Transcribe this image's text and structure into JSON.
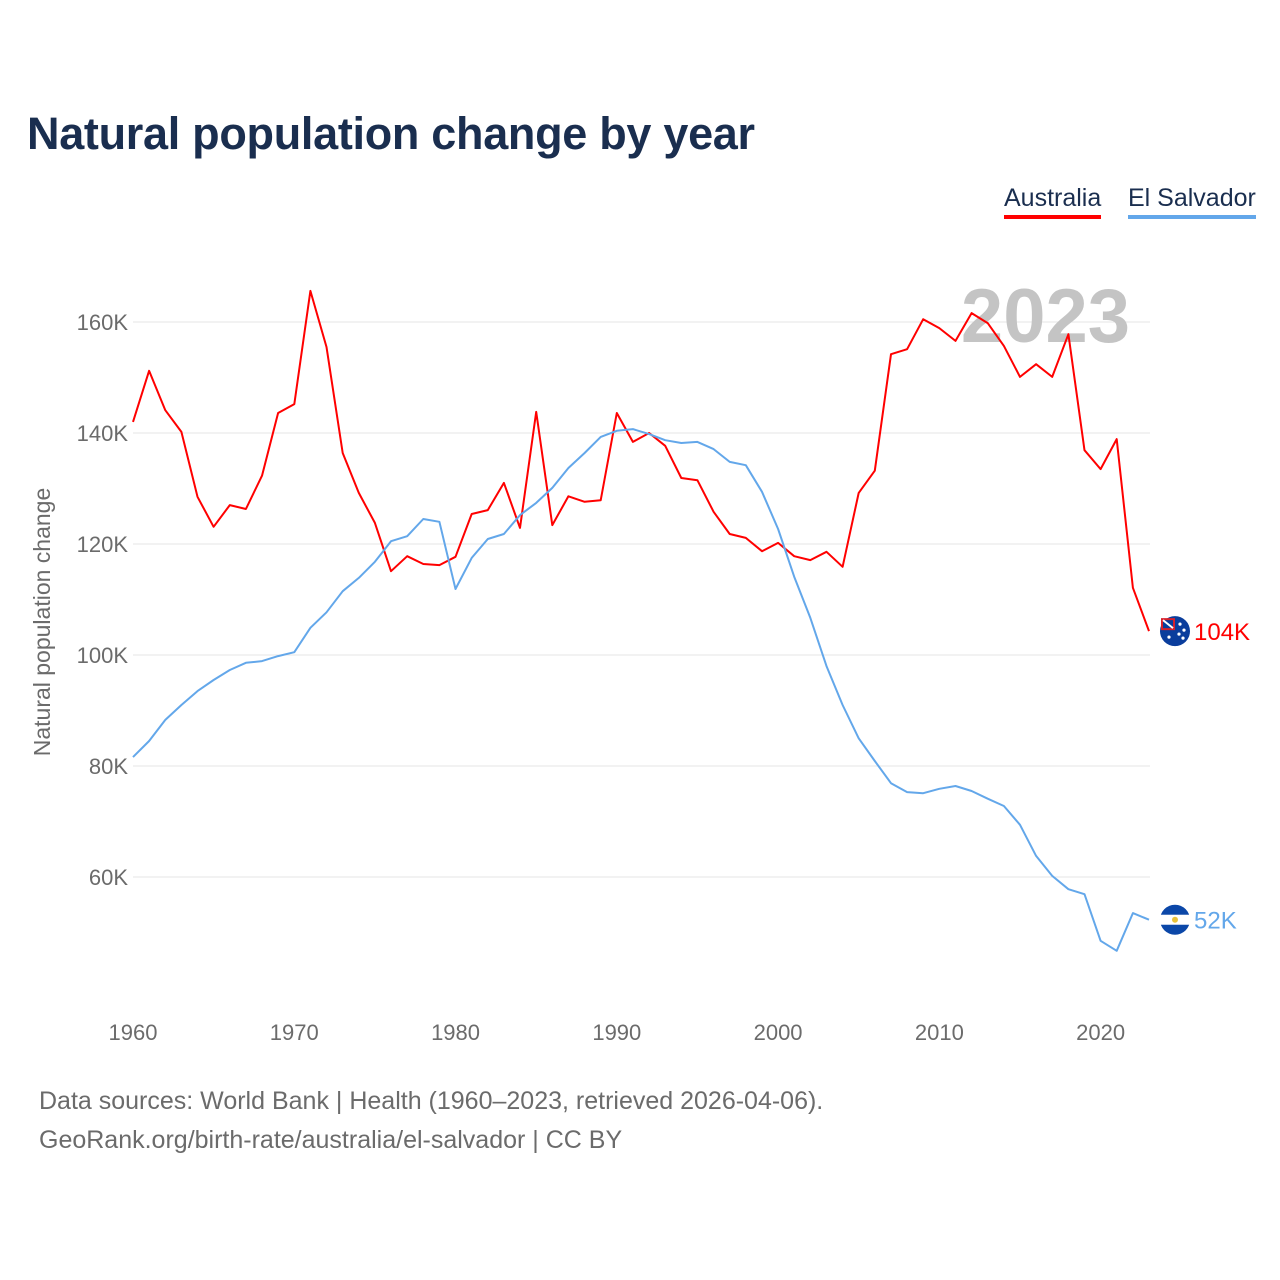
{
  "title": "Natural population change by year",
  "legend": [
    {
      "label": "Australia",
      "color": "#ff0000"
    },
    {
      "label": "El Salvador",
      "color": "#63a7ea"
    }
  ],
  "year_watermark": "2023",
  "footer": {
    "line1": "Data sources: World Bank | Health (1960–2023, retrieved 2026-04-06).",
    "line2": "GeoRank.org/birth-rate/australia/el-salvador | CC BY"
  },
  "chart_data": {
    "type": "line",
    "title": "Natural population change by year",
    "xlabel": "",
    "ylabel": "Natural population change",
    "x_start": 1960,
    "x_end": 2023,
    "xlim": [
      1960,
      2023
    ],
    "ylim": [
      40000,
      160000
    ],
    "x_ticks": [
      "1960",
      "1970",
      "1980",
      "1990",
      "2000",
      "2010",
      "2020"
    ],
    "y_ticks": [
      {
        "value": 60000,
        "label": "60K"
      },
      {
        "value": 80000,
        "label": "80K"
      },
      {
        "value": 100000,
        "label": "100K"
      },
      {
        "value": 120000,
        "label": "120K"
      },
      {
        "value": 140000,
        "label": "140K"
      },
      {
        "value": 160000,
        "label": "160K"
      }
    ],
    "grid": true,
    "legend_position": "top-right",
    "series": [
      {
        "name": "Australia",
        "color": "#ff0000",
        "end_label": "104K",
        "flag": "australia-flag",
        "values": [
          142000,
          151200,
          144100,
          140200,
          128500,
          123100,
          127000,
          126300,
          132300,
          143600,
          145200,
          165600,
          155500,
          136400,
          129200,
          123800,
          115100,
          117800,
          116400,
          116200,
          117700,
          125400,
          126100,
          131000,
          122900,
          143800,
          123400,
          128600,
          127600,
          127900,
          143600,
          138400,
          140000,
          137700,
          131900,
          131500,
          125800,
          121800,
          121100,
          118700,
          120200,
          117800,
          117100,
          118600,
          115900,
          129200,
          133200,
          154200,
          155100,
          160500,
          158900,
          156600,
          161600,
          159800,
          155700,
          150100,
          152400,
          150100,
          157800,
          136900,
          133500,
          138900,
          112100,
          104300
        ]
      },
      {
        "name": "El Salvador",
        "color": "#63a7ea",
        "end_label": "52K",
        "flag": "el-salvador-flag",
        "values": [
          81600,
          84500,
          88300,
          91000,
          93500,
          95500,
          97300,
          98600,
          98900,
          99800,
          100500,
          104900,
          107700,
          111500,
          113900,
          116800,
          120500,
          121400,
          124500,
          124000,
          111900,
          117500,
          120900,
          121800,
          125200,
          127400,
          130100,
          133700,
          136400,
          139300,
          140400,
          140700,
          139800,
          138700,
          138200,
          138400,
          137100,
          134800,
          134200,
          129400,
          122700,
          114100,
          106700,
          98000,
          91000,
          85000,
          80900,
          76900,
          75300,
          75100,
          75900,
          76400,
          75500,
          74100,
          72800,
          69400,
          63800,
          60200,
          57800,
          56900,
          48500,
          46700,
          53500,
          52300
        ]
      }
    ]
  }
}
